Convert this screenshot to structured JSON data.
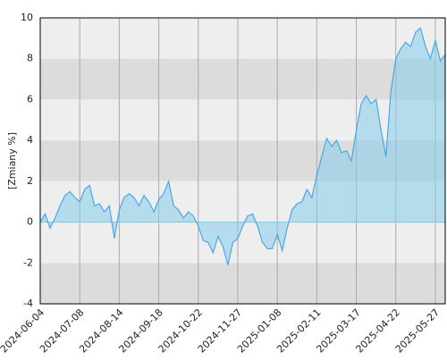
{
  "chart_data": {
    "type": "area",
    "y_label": "[Zmiany %]",
    "categories": [
      "2024-06-04",
      null,
      null,
      null,
      null,
      null,
      null,
      null,
      "2024-07-08",
      null,
      null,
      null,
      null,
      null,
      null,
      null,
      "2024-08-14",
      null,
      null,
      null,
      null,
      null,
      null,
      null,
      "2024-09-18",
      null,
      null,
      null,
      null,
      null,
      null,
      null,
      "2024-10-22",
      null,
      null,
      null,
      null,
      null,
      null,
      null,
      "2024-11-27",
      null,
      null,
      null,
      null,
      null,
      null,
      null,
      "2025-01-08",
      null,
      null,
      null,
      null,
      null,
      null,
      null,
      "2025-02-11",
      null,
      null,
      null,
      null,
      null,
      null,
      null,
      "2025-03-17",
      null,
      null,
      null,
      null,
      null,
      null,
      null,
      "2025-04-22",
      null,
      null,
      null,
      null,
      null,
      null,
      null,
      "2025-05-27",
      null,
      null
    ],
    "series": [
      {
        "color": "#4da6e8",
        "values": [
          0.0,
          0.4,
          -0.3,
          0.2,
          0.8,
          1.3,
          1.5,
          1.2,
          1.0,
          1.6,
          1.8,
          0.8,
          0.9,
          0.5,
          0.8,
          -0.8,
          0.6,
          1.2,
          1.4,
          1.2,
          0.8,
          1.3,
          1.0,
          0.5,
          1.1,
          1.4,
          2.0,
          0.8,
          0.6,
          0.2,
          0.5,
          0.3,
          -0.2,
          -0.9,
          -1.0,
          -1.5,
          -0.7,
          -1.2,
          -2.1,
          -1.0,
          -0.8,
          -0.2,
          0.3,
          0.4,
          -0.2,
          -1.0,
          -1.3,
          -1.3,
          -0.6,
          -1.4,
          -0.3,
          0.6,
          0.9,
          1.0,
          1.6,
          1.2,
          2.3,
          3.2,
          4.1,
          3.7,
          4.0,
          3.4,
          3.5,
          3.0,
          4.5,
          5.8,
          6.2,
          5.8,
          6.0,
          4.5,
          3.2,
          6.4,
          8.0,
          8.5,
          8.8,
          8.6,
          9.3,
          9.5,
          8.6,
          8.0,
          8.9,
          7.9,
          8.2
        ]
      }
    ],
    "ylim": [
      -4,
      10
    ],
    "yticks": [
      10,
      8,
      6,
      4,
      2,
      0,
      -2,
      -4
    ],
    "grid": true
  }
}
